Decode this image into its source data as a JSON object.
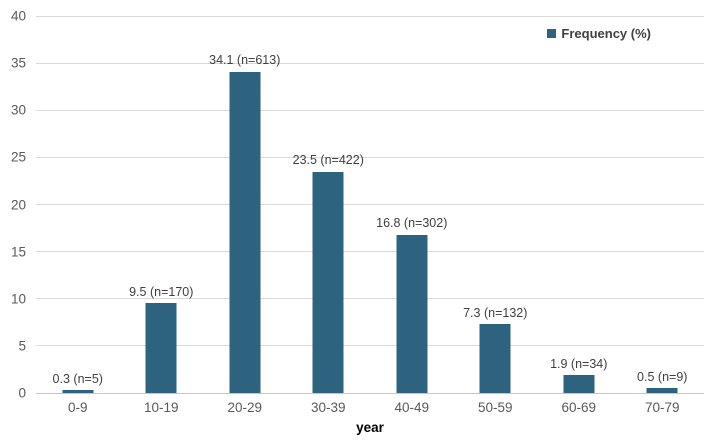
{
  "chart_data": {
    "type": "bar",
    "title": "",
    "xlabel": "year",
    "ylabel": "",
    "legend": {
      "label": "Frequency (%)",
      "position": "top-right"
    },
    "categories": [
      "0-9",
      "10-19",
      "20-29",
      "30-39",
      "40-49",
      "50-59",
      "60-69",
      "70-79"
    ],
    "series": [
      {
        "name": "Frequency (%)",
        "values": [
          0.3,
          9.5,
          34.1,
          23.5,
          16.8,
          7.3,
          1.9,
          0.5
        ],
        "counts": [
          5,
          170,
          613,
          422,
          302,
          132,
          34,
          9
        ]
      }
    ],
    "data_labels": [
      "0.3 (n=5)",
      "9.5 (n=170)",
      "34.1 (n=613)",
      "23.5 (n=422)",
      "16.8 (n=302)",
      "7.3 (n=132)",
      "1.9 (n=34)",
      "0.5 (n=9)"
    ],
    "ylim": [
      0,
      40
    ],
    "yticks": [
      0,
      5,
      10,
      15,
      20,
      25,
      30,
      35,
      40
    ],
    "grid": true,
    "colors": {
      "bar": "#2e6380",
      "gridline": "#d9d9d9",
      "axis_line": "#c6c6c6",
      "tick_label": "#595959",
      "data_label": "#3f3f3f",
      "xlabel": "#000000",
      "legend_text": "#404040"
    }
  }
}
